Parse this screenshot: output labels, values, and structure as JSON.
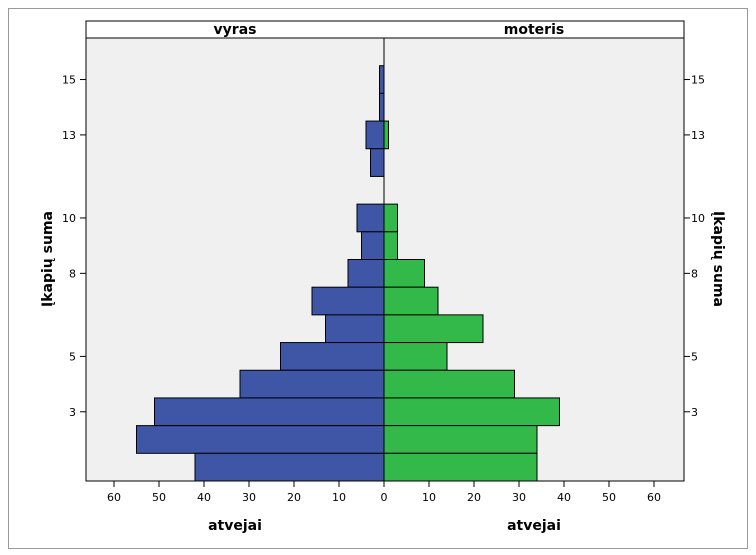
{
  "chart_data": {
    "type": "bar",
    "orientation": "horizontal",
    "subtype": "population-pyramid",
    "panels": [
      {
        "title": "vyras",
        "xlabel": "atvejai",
        "color": "#3f55a6",
        "direction": "left"
      },
      {
        "title": "moteris",
        "xlabel": "atvejai",
        "color": "#33b94a",
        "direction": "right"
      }
    ],
    "ylabel": "Įkapių suma",
    "y": [
      15,
      14,
      13,
      12,
      10,
      9,
      8,
      7,
      6,
      5,
      4,
      3,
      2,
      1
    ],
    "series": [
      {
        "name": "vyras",
        "values": [
          1,
          1,
          4,
          3,
          6,
          5,
          8,
          16,
          13,
          23,
          32,
          51,
          55,
          42
        ]
      },
      {
        "name": "moteris",
        "values": [
          0,
          0,
          1,
          0,
          3,
          3,
          9,
          12,
          22,
          14,
          29,
          39,
          34,
          34
        ]
      }
    ],
    "y_ticks": [
      15,
      13,
      10,
      8,
      5,
      3
    ],
    "x_ticks_left": [
      60,
      50,
      40,
      30,
      20,
      10,
      0
    ],
    "x_ticks_right": [
      0,
      10,
      20,
      30,
      40,
      50,
      60
    ],
    "xlim": [
      0,
      60
    ],
    "ylim": [
      0.5,
      16.5
    ],
    "grid": false,
    "colors": {
      "plot_background": "#f0f0f0",
      "male": "#3f55a6",
      "female": "#33b94a"
    }
  }
}
